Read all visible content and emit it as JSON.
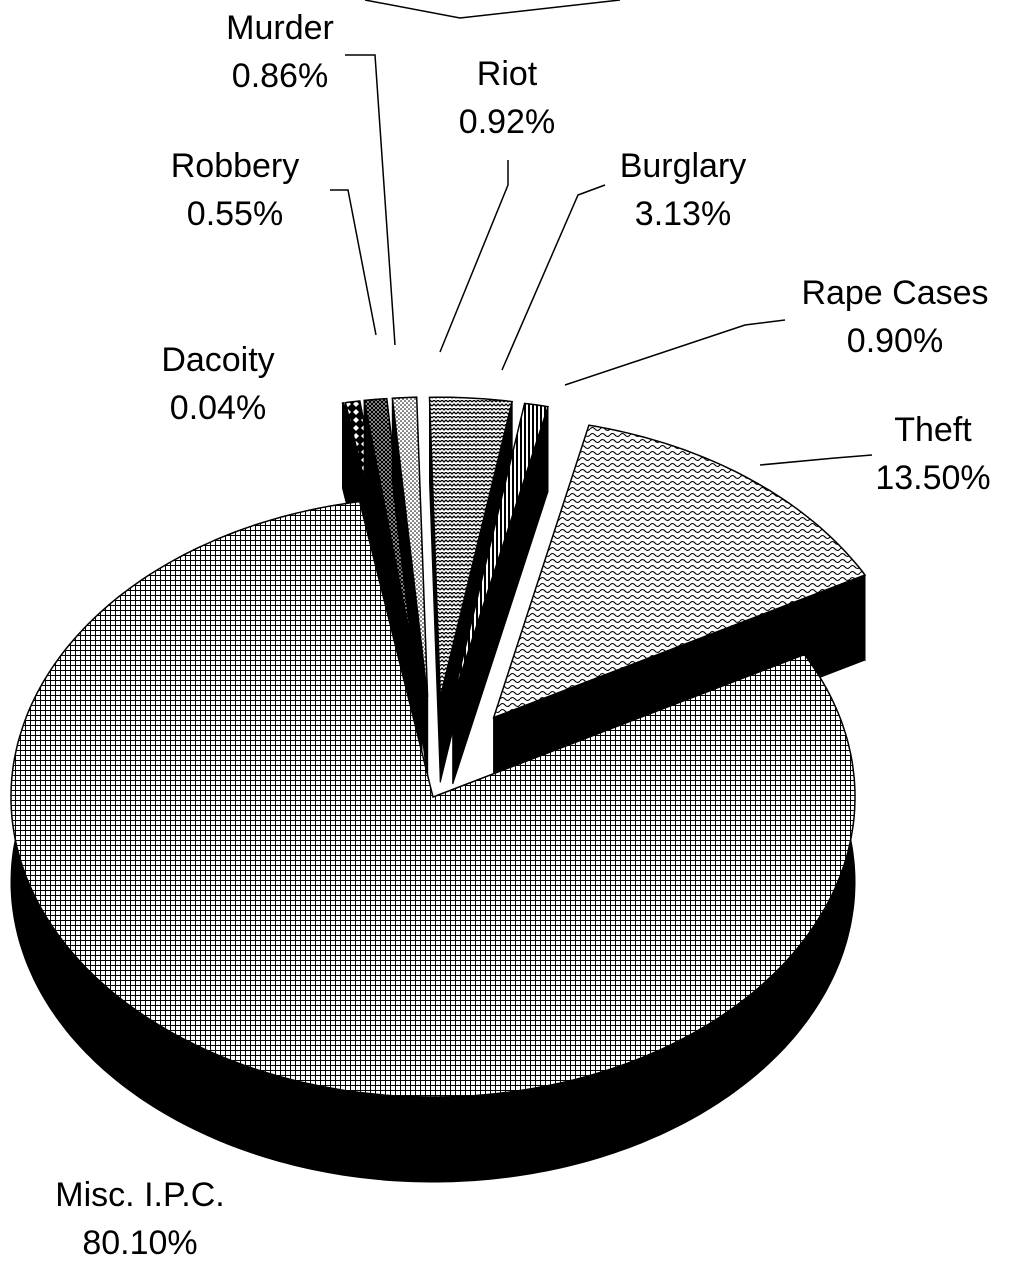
{
  "chart_data": {
    "type": "pie",
    "categories": [
      "Dacoity",
      "Robbery",
      "Murder",
      "Riot",
      "Burglary",
      "Rape Cases",
      "Theft",
      "Misc. I.P.C."
    ],
    "values": [
      0.04,
      0.55,
      0.86,
      0.92,
      3.13,
      0.9,
      13.5,
      80.1
    ],
    "value_labels": [
      "0.04%",
      "0.55%",
      "0.86%",
      "0.92%",
      "3.13%",
      "0.90%",
      "13.50%",
      "80.10%"
    ]
  }
}
